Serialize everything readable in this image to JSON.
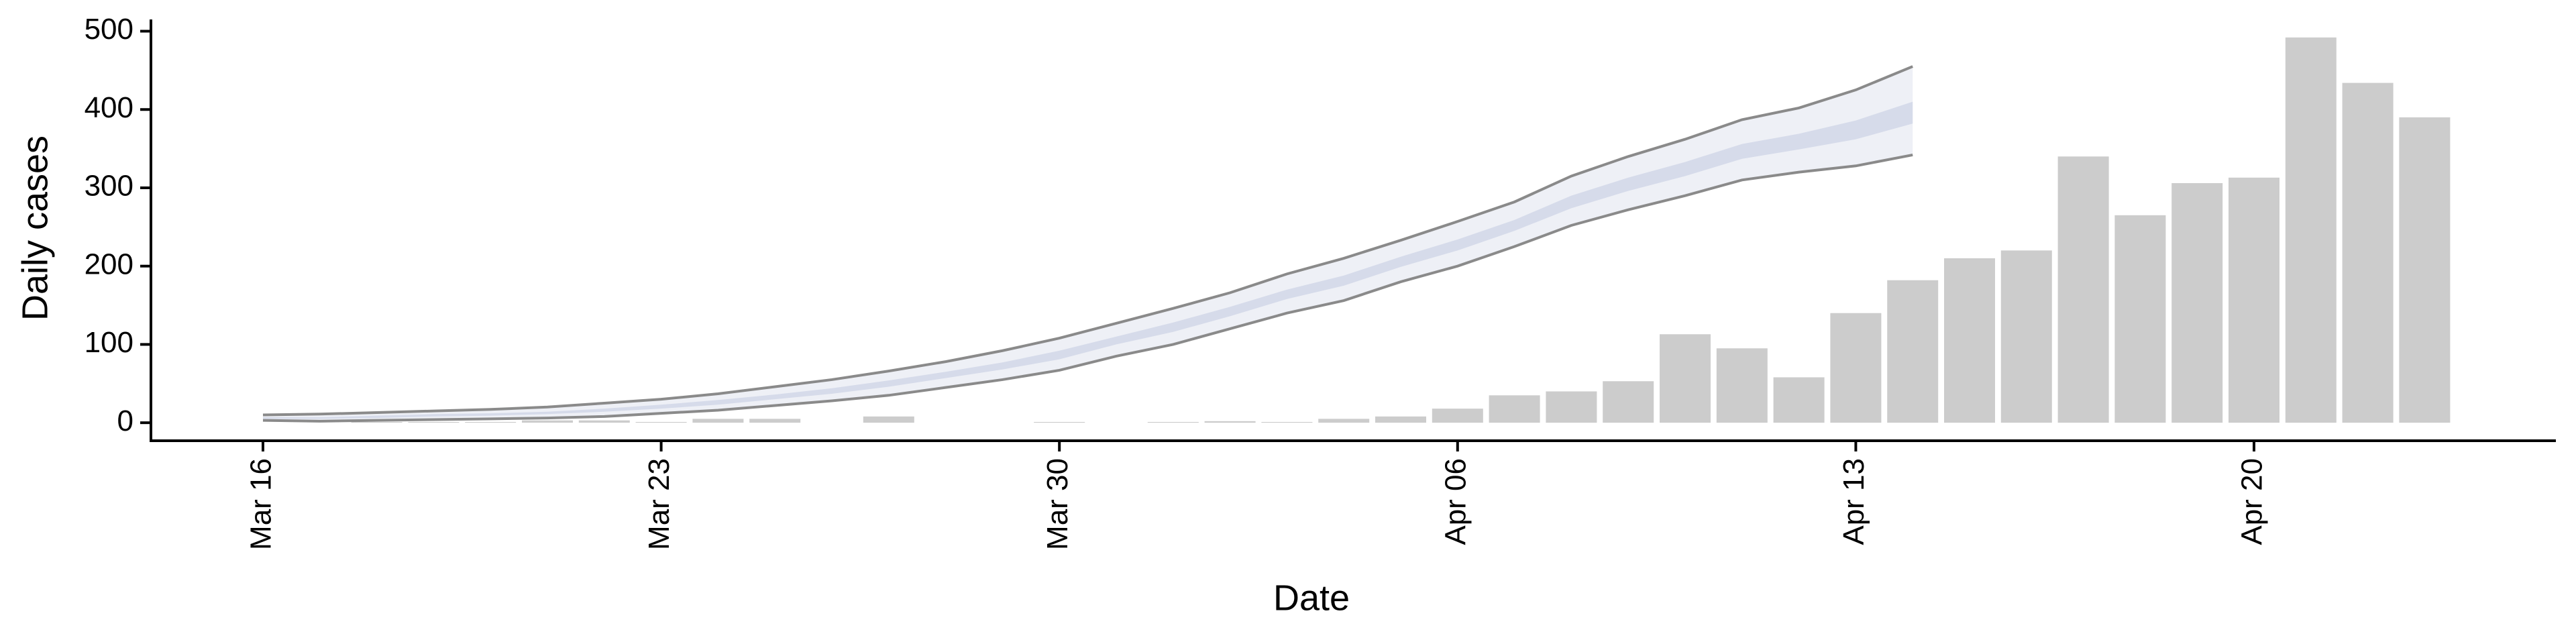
{
  "chart_data": {
    "type": "bar",
    "xlabel": "Date",
    "ylabel": "Daily cases",
    "categories": [
      "Mar 16",
      null,
      null,
      null,
      null,
      null,
      null,
      "Mar 23",
      null,
      null,
      null,
      null,
      null,
      null,
      "Mar 30",
      null,
      null,
      null,
      null,
      null,
      null,
      "Apr 06",
      null,
      null,
      null,
      null,
      null,
      null,
      "Apr 13",
      null,
      null,
      null,
      null,
      null,
      null,
      "Apr 20",
      null,
      null,
      null
    ],
    "values": [
      0,
      0,
      1,
      1,
      1,
      3,
      3,
      1,
      5,
      5,
      0,
      8,
      0,
      0,
      1,
      0,
      1,
      2,
      1,
      5,
      8,
      18,
      35,
      40,
      53,
      113,
      95,
      58,
      140,
      182,
      210,
      220,
      340,
      265,
      306,
      313,
      492,
      434,
      390
    ],
    "color": "#cccccc",
    "ribbons": [
      {
        "color": "#eef0f6",
        "line_color": "#8a8a8a",
        "upper": [
          10,
          11,
          13,
          15,
          17,
          20,
          25,
          30,
          37,
          46,
          55,
          66,
          78,
          92,
          108,
          127,
          146,
          166,
          190,
          210,
          233,
          257,
          282,
          315,
          340,
          362,
          387,
          402,
          425,
          455,
          null,
          null,
          null,
          null,
          null,
          null,
          null,
          null,
          null
        ],
        "lower": [
          3,
          2,
          3,
          4,
          5,
          6,
          8,
          12,
          16,
          22,
          28,
          35,
          45,
          55,
          67,
          85,
          100,
          120,
          140,
          156,
          180,
          200,
          225,
          252,
          272,
          290,
          310,
          320,
          328,
          342,
          null,
          null,
          null,
          null,
          null,
          null,
          null,
          null,
          null
        ]
      },
      {
        "color": "#d6dbea",
        "upper": [
          7,
          7,
          9,
          11,
          12,
          14,
          18,
          23,
          29,
          36,
          44,
          54,
          65,
          77,
          92,
          110,
          128,
          148,
          170,
          188,
          212,
          234,
          259,
          290,
          313,
          333,
          356,
          369,
          386,
          410,
          null,
          null,
          null,
          null,
          null,
          null,
          null,
          null,
          null
        ],
        "lower": [
          5,
          5,
          6,
          8,
          9,
          11,
          14,
          18,
          23,
          30,
          37,
          46,
          57,
          68,
          81,
          100,
          116,
          136,
          158,
          175,
          199,
          220,
          245,
          274,
          296,
          315,
          337,
          349,
          362,
          382,
          null,
          null,
          null,
          null,
          null,
          null,
          null,
          null,
          null
        ]
      }
    ],
    "ylim": [
      -23,
      515
    ],
    "yticks": [
      0,
      100,
      200,
      300,
      400,
      500
    ],
    "grid": false
  }
}
